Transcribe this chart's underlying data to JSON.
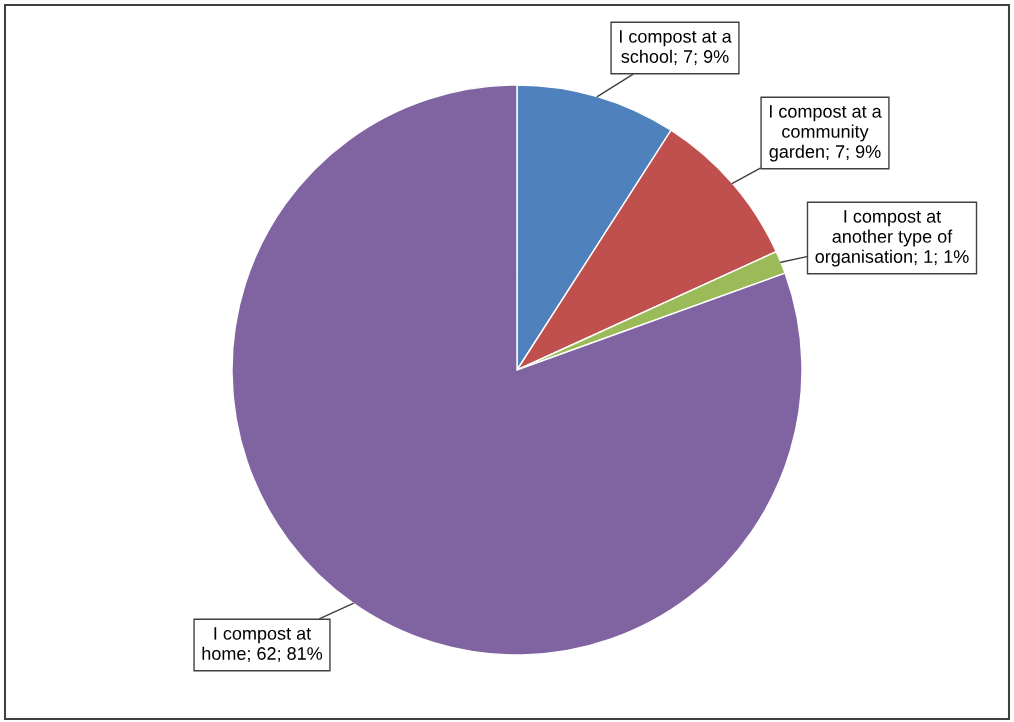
{
  "chart_data": {
    "type": "pie",
    "categories": [
      "I compost at a\nschool",
      "I compost at a\ncommunity\ngarden",
      "I compost at\nanother type of\norganisation",
      "I compost at\nhome"
    ],
    "values": [
      7,
      7,
      1,
      62
    ],
    "value_labels": [
      "7; 9%",
      "7; 9%",
      "1; 1%",
      "62; 81%"
    ],
    "colors": [
      "#4f81bd",
      "#c0504d",
      "#9bbb59",
      "#8064a2"
    ],
    "legend": false
  }
}
